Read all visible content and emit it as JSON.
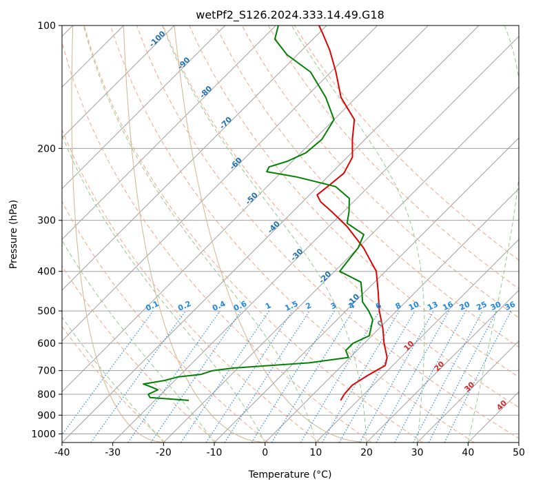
{
  "chart_data": {
    "type": "line",
    "title": "wetPf2_S126.2024.333.14.49.G18",
    "xlabel": "Temperature (°C)",
    "ylabel": "Pressure (hPa)",
    "xlim": [
      -40,
      50
    ],
    "ylim": [
      1050,
      100
    ],
    "y_scale": "log",
    "skew": "skew-T log-p",
    "grid": true,
    "x_ticks": [
      -40,
      -30,
      -20,
      -10,
      0,
      10,
      20,
      30,
      40,
      50
    ],
    "y_ticks": [
      100,
      200,
      300,
      400,
      500,
      600,
      700,
      800,
      900,
      1000
    ],
    "series": [
      {
        "role": "temperature",
        "color": "#e00000",
        "points": [
          {
            "p": 828,
            "t": 6.6
          },
          {
            "p": 800,
            "t": 6.1
          },
          {
            "p": 760,
            "t": 5.9
          },
          {
            "p": 720,
            "t": 7.0
          },
          {
            "p": 680,
            "t": 8.5
          },
          {
            "p": 650,
            "t": 7.3
          },
          {
            "p": 600,
            "t": 3.9
          },
          {
            "p": 550,
            "t": 0.6
          },
          {
            "p": 500,
            "t": -3.4
          },
          {
            "p": 450,
            "t": -7.3
          },
          {
            "p": 400,
            "t": -11.8
          },
          {
            "p": 350,
            "t": -19.0
          },
          {
            "p": 310,
            "t": -26.5
          },
          {
            "p": 285,
            "t": -32.5
          },
          {
            "p": 270,
            "t": -36.5
          },
          {
            "p": 260,
            "t": -38.5
          },
          {
            "p": 245,
            "t": -38.0
          },
          {
            "p": 230,
            "t": -37.5
          },
          {
            "p": 210,
            "t": -39.0
          },
          {
            "p": 190,
            "t": -42.5
          },
          {
            "p": 170,
            "t": -46.0
          },
          {
            "p": 150,
            "t": -53.0
          },
          {
            "p": 130,
            "t": -59.0
          },
          {
            "p": 115,
            "t": -64.5
          },
          {
            "p": 105,
            "t": -69.0
          },
          {
            "p": 100,
            "t": -71.5
          }
        ]
      },
      {
        "role": "dewpoint",
        "color": "#008000",
        "points": [
          {
            "p": 828,
            "t": -23.3
          },
          {
            "p": 815,
            "t": -31.5
          },
          {
            "p": 800,
            "t": -32.5
          },
          {
            "p": 780,
            "t": -31.5
          },
          {
            "p": 770,
            "t": -33.0
          },
          {
            "p": 755,
            "t": -35.5
          },
          {
            "p": 740,
            "t": -32.0
          },
          {
            "p": 725,
            "t": -30.0
          },
          {
            "p": 715,
            "t": -26.0
          },
          {
            "p": 700,
            "t": -24.5
          },
          {
            "p": 690,
            "t": -21.0
          },
          {
            "p": 670,
            "t": -7.0
          },
          {
            "p": 650,
            "t": -0.3
          },
          {
            "p": 625,
            "t": -2.2
          },
          {
            "p": 600,
            "t": -2.2
          },
          {
            "p": 575,
            "t": -0.5
          },
          {
            "p": 550,
            "t": -1.7
          },
          {
            "p": 525,
            "t": -3.0
          },
          {
            "p": 500,
            "t": -5.5
          },
          {
            "p": 475,
            "t": -8.5
          },
          {
            "p": 450,
            "t": -10.5
          },
          {
            "p": 425,
            "t": -12.7
          },
          {
            "p": 400,
            "t": -19.0
          },
          {
            "p": 375,
            "t": -19.5
          },
          {
            "p": 350,
            "t": -20.0
          },
          {
            "p": 325,
            "t": -21.5
          },
          {
            "p": 305,
            "t": -27.0
          },
          {
            "p": 285,
            "t": -29.0
          },
          {
            "p": 265,
            "t": -31.5
          },
          {
            "p": 248,
            "t": -36.5
          },
          {
            "p": 235,
            "t": -46.0
          },
          {
            "p": 228,
            "t": -53.0
          },
          {
            "p": 222,
            "t": -53.5
          },
          {
            "p": 215,
            "t": -51.0
          },
          {
            "p": 205,
            "t": -49.0
          },
          {
            "p": 190,
            "t": -48.5
          },
          {
            "p": 170,
            "t": -50.0
          },
          {
            "p": 150,
            "t": -56.0
          },
          {
            "p": 130,
            "t": -64.0
          },
          {
            "p": 118,
            "t": -72.0
          },
          {
            "p": 108,
            "t": -77.5
          },
          {
            "p": 100,
            "t": -79.5
          }
        ]
      }
    ],
    "dry_adiabats_k": [
      250,
      260,
      270,
      280,
      290,
      300,
      310,
      320,
      330,
      340,
      350,
      360,
      370,
      380
    ],
    "moist_adiabat_start_c": [
      -20,
      -10,
      0,
      10,
      20,
      30,
      40
    ],
    "isotherms_c": [
      -120,
      -110,
      -100,
      -90,
      -80,
      -70,
      -60,
      -50,
      -40,
      -30,
      -20,
      -10,
      0,
      10,
      20,
      30,
      40,
      50
    ],
    "isotherm_labels": [
      {
        "text": "-100",
        "t": -100,
        "p": 109
      },
      {
        "text": "-90",
        "t": -90,
        "p": 125
      },
      {
        "text": "-80",
        "t": -80,
        "p": 147
      },
      {
        "text": "-70",
        "t": -70,
        "p": 175
      },
      {
        "text": "-60",
        "t": -60,
        "p": 220
      },
      {
        "text": "-50",
        "t": -50,
        "p": 268
      },
      {
        "text": "-40",
        "t": -40,
        "p": 315
      },
      {
        "text": "-30",
        "t": -30,
        "p": 368
      },
      {
        "text": "-20",
        "t": -20,
        "p": 418
      },
      {
        "text": "-10",
        "t": -10,
        "p": 475
      },
      {
        "text": "0",
        "t": 0,
        "p": 542
      },
      {
        "text": "10",
        "t": 10,
        "p": 615
      },
      {
        "text": "20",
        "t": 20,
        "p": 690
      },
      {
        "text": "30",
        "t": 30,
        "p": 775
      },
      {
        "text": "40",
        "t": 40,
        "p": 860
      }
    ],
    "mixing_ratio_lines": [
      {
        "label": "0.1",
        "w": 0.1
      },
      {
        "label": "0.2",
        "w": 0.2
      },
      {
        "label": "0.4",
        "w": 0.4
      },
      {
        "label": "0.6",
        "w": 0.6
      },
      {
        "label": "1",
        "w": 1
      },
      {
        "label": "1.5",
        "w": 1.5
      },
      {
        "label": "2",
        "w": 2
      },
      {
        "label": "3",
        "w": 3
      },
      {
        "label": "4",
        "w": 4
      },
      {
        "label": "6",
        "w": 6
      },
      {
        "label": "8",
        "w": 8
      },
      {
        "label": "10",
        "w": 10
      },
      {
        "label": "13",
        "w": 13
      },
      {
        "label": "16",
        "w": 16
      },
      {
        "label": "20",
        "w": 20
      },
      {
        "label": "25",
        "w": 25
      },
      {
        "label": "30",
        "w": 30
      },
      {
        "label": "36",
        "w": 36
      }
    ],
    "colors": {
      "temperature": "#e00000",
      "dewpoint": "#008000",
      "isotherm": "#a0a0a0",
      "dry_adiabat": "#f4a582",
      "moist_adiabat": "#92c98c",
      "mixing_ratio": "#1e88e5",
      "label_cold": "#1f6fb4",
      "label_zero": "#808080",
      "label_warm": "#d62728",
      "tan_curve": "#d2b48c"
    }
  }
}
